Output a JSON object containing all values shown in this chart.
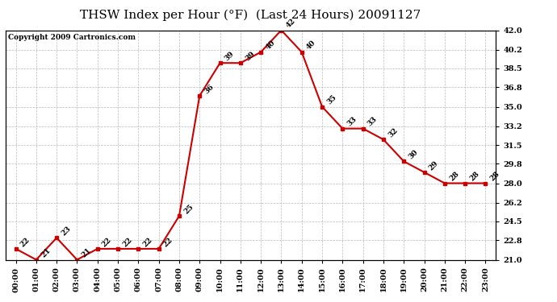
{
  "title": "THSW Index per Hour (°F)  (Last 24 Hours) 20091127",
  "copyright": "Copyright 2009 Cartronics.com",
  "hours": [
    0,
    1,
    2,
    3,
    4,
    5,
    6,
    7,
    8,
    9,
    10,
    11,
    12,
    13,
    14,
    15,
    16,
    17,
    18,
    19,
    20,
    21,
    22,
    23
  ],
  "x_labels": [
    "00:00",
    "01:00",
    "02:00",
    "03:00",
    "04:00",
    "05:00",
    "06:00",
    "07:00",
    "08:00",
    "09:00",
    "10:00",
    "11:00",
    "12:00",
    "13:00",
    "14:00",
    "15:00",
    "16:00",
    "17:00",
    "18:00",
    "19:00",
    "20:00",
    "21:00",
    "22:00",
    "23:00"
  ],
  "values": [
    22,
    21,
    23,
    21,
    22,
    22,
    22,
    22,
    25,
    36,
    39,
    39,
    40,
    42,
    40,
    35,
    33,
    33,
    32,
    30,
    29,
    28,
    28,
    28
  ],
  "line_color": "#cc0000",
  "marker_color": "#cc0000",
  "background_color": "#ffffff",
  "grid_color": "#bbbbbb",
  "ylim_min": 21.0,
  "ylim_max": 42.0,
  "yticks": [
    21.0,
    22.8,
    24.5,
    26.2,
    28.0,
    29.8,
    31.5,
    33.2,
    35.0,
    36.8,
    38.5,
    40.2,
    42.0
  ],
  "title_fontsize": 11,
  "label_fontsize": 7,
  "annotation_fontsize": 6.5,
  "copyright_fontsize": 6.5
}
